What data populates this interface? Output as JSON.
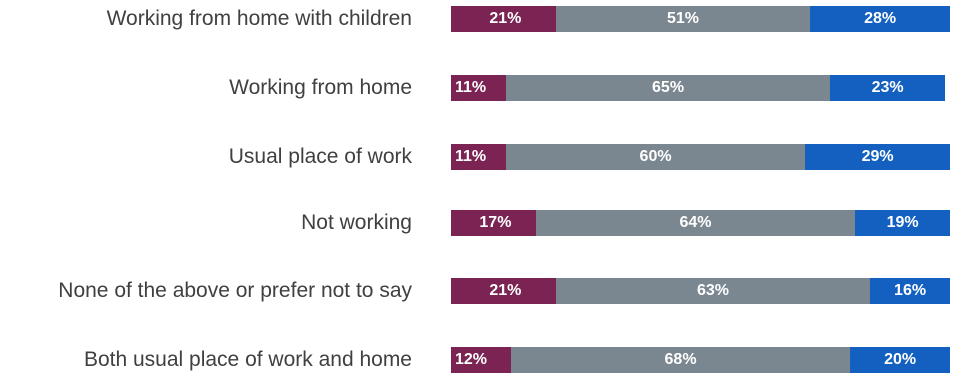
{
  "chart_data": {
    "type": "bar",
    "orientation": "horizontal",
    "stacked": true,
    "percent": true,
    "categories": [
      "Working from home with children",
      "Working from home",
      "Usual place of work",
      "Not working",
      "None of the above or prefer not to say",
      "Both usual place of work and home"
    ],
    "series": [
      {
        "color": "#7b2353",
        "values": [
          21,
          11,
          11,
          17,
          21,
          12
        ]
      },
      {
        "color": "#7a8791",
        "values": [
          51,
          65,
          60,
          64,
          63,
          68
        ]
      },
      {
        "color": "#1360c0",
        "values": [
          28,
          23,
          29,
          19,
          16,
          20
        ]
      }
    ],
    "labels": [
      [
        "21%",
        "51%",
        "28%"
      ],
      [
        "11%",
        "65%",
        "23%"
      ],
      [
        "11%",
        "60%",
        "29%"
      ],
      [
        "17%",
        "64%",
        "19%"
      ],
      [
        "21%",
        "63%",
        "16%"
      ],
      [
        "12%",
        "68%",
        "20%"
      ]
    ],
    "xlim": [
      0,
      100
    ],
    "grid": false,
    "legend": "none"
  }
}
